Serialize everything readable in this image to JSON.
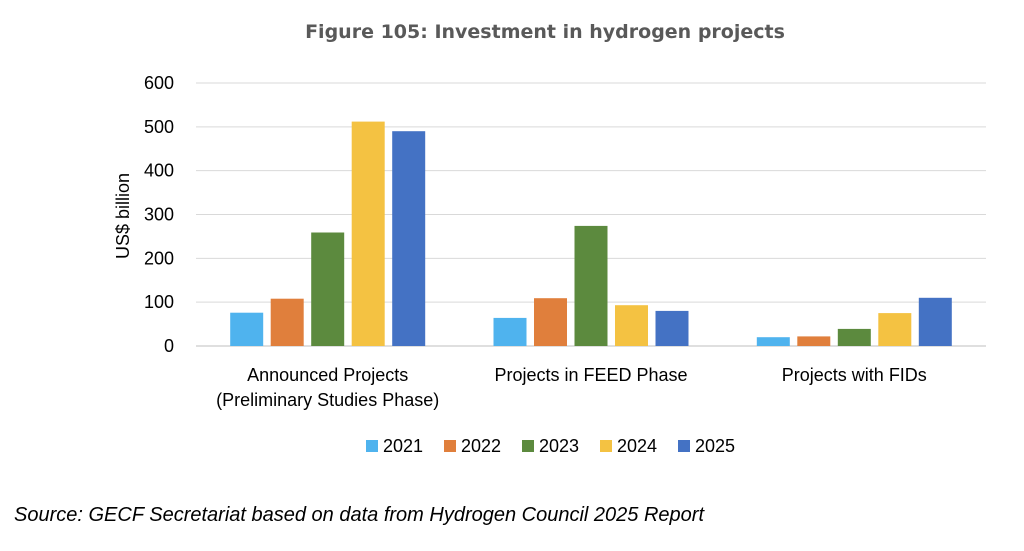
{
  "chart_data": {
    "type": "bar",
    "title": "Figure 105: Investment in hydrogen projects",
    "ylabel": "US$ billion",
    "xlabel": "",
    "ylim": [
      0,
      600
    ],
    "yticks": [
      "0",
      "100",
      "200",
      "300",
      "400",
      "500",
      "600"
    ],
    "grid": true,
    "legend_position": "bottom",
    "categories": [
      [
        "Announced Projects",
        "(Preliminary Studies Phase)"
      ],
      [
        "Projects in FEED Phase"
      ],
      [
        "Projects with FIDs"
      ]
    ],
    "series": [
      {
        "name": "2021",
        "color": "#4fb3ee",
        "values": [
          76,
          64,
          20
        ]
      },
      {
        "name": "2022",
        "color": "#e07f3c",
        "values": [
          108,
          109,
          22
        ]
      },
      {
        "name": "2023",
        "color": "#5c8a3e",
        "values": [
          259,
          274,
          39
        ]
      },
      {
        "name": "2024",
        "color": "#f4c242",
        "values": [
          512,
          93,
          75
        ]
      },
      {
        "name": "2025",
        "color": "#4472c4",
        "values": [
          490,
          80,
          110
        ]
      }
    ]
  },
  "source_note": "Source: GECF Secretariat based on data from Hydrogen Council 2025 Report"
}
